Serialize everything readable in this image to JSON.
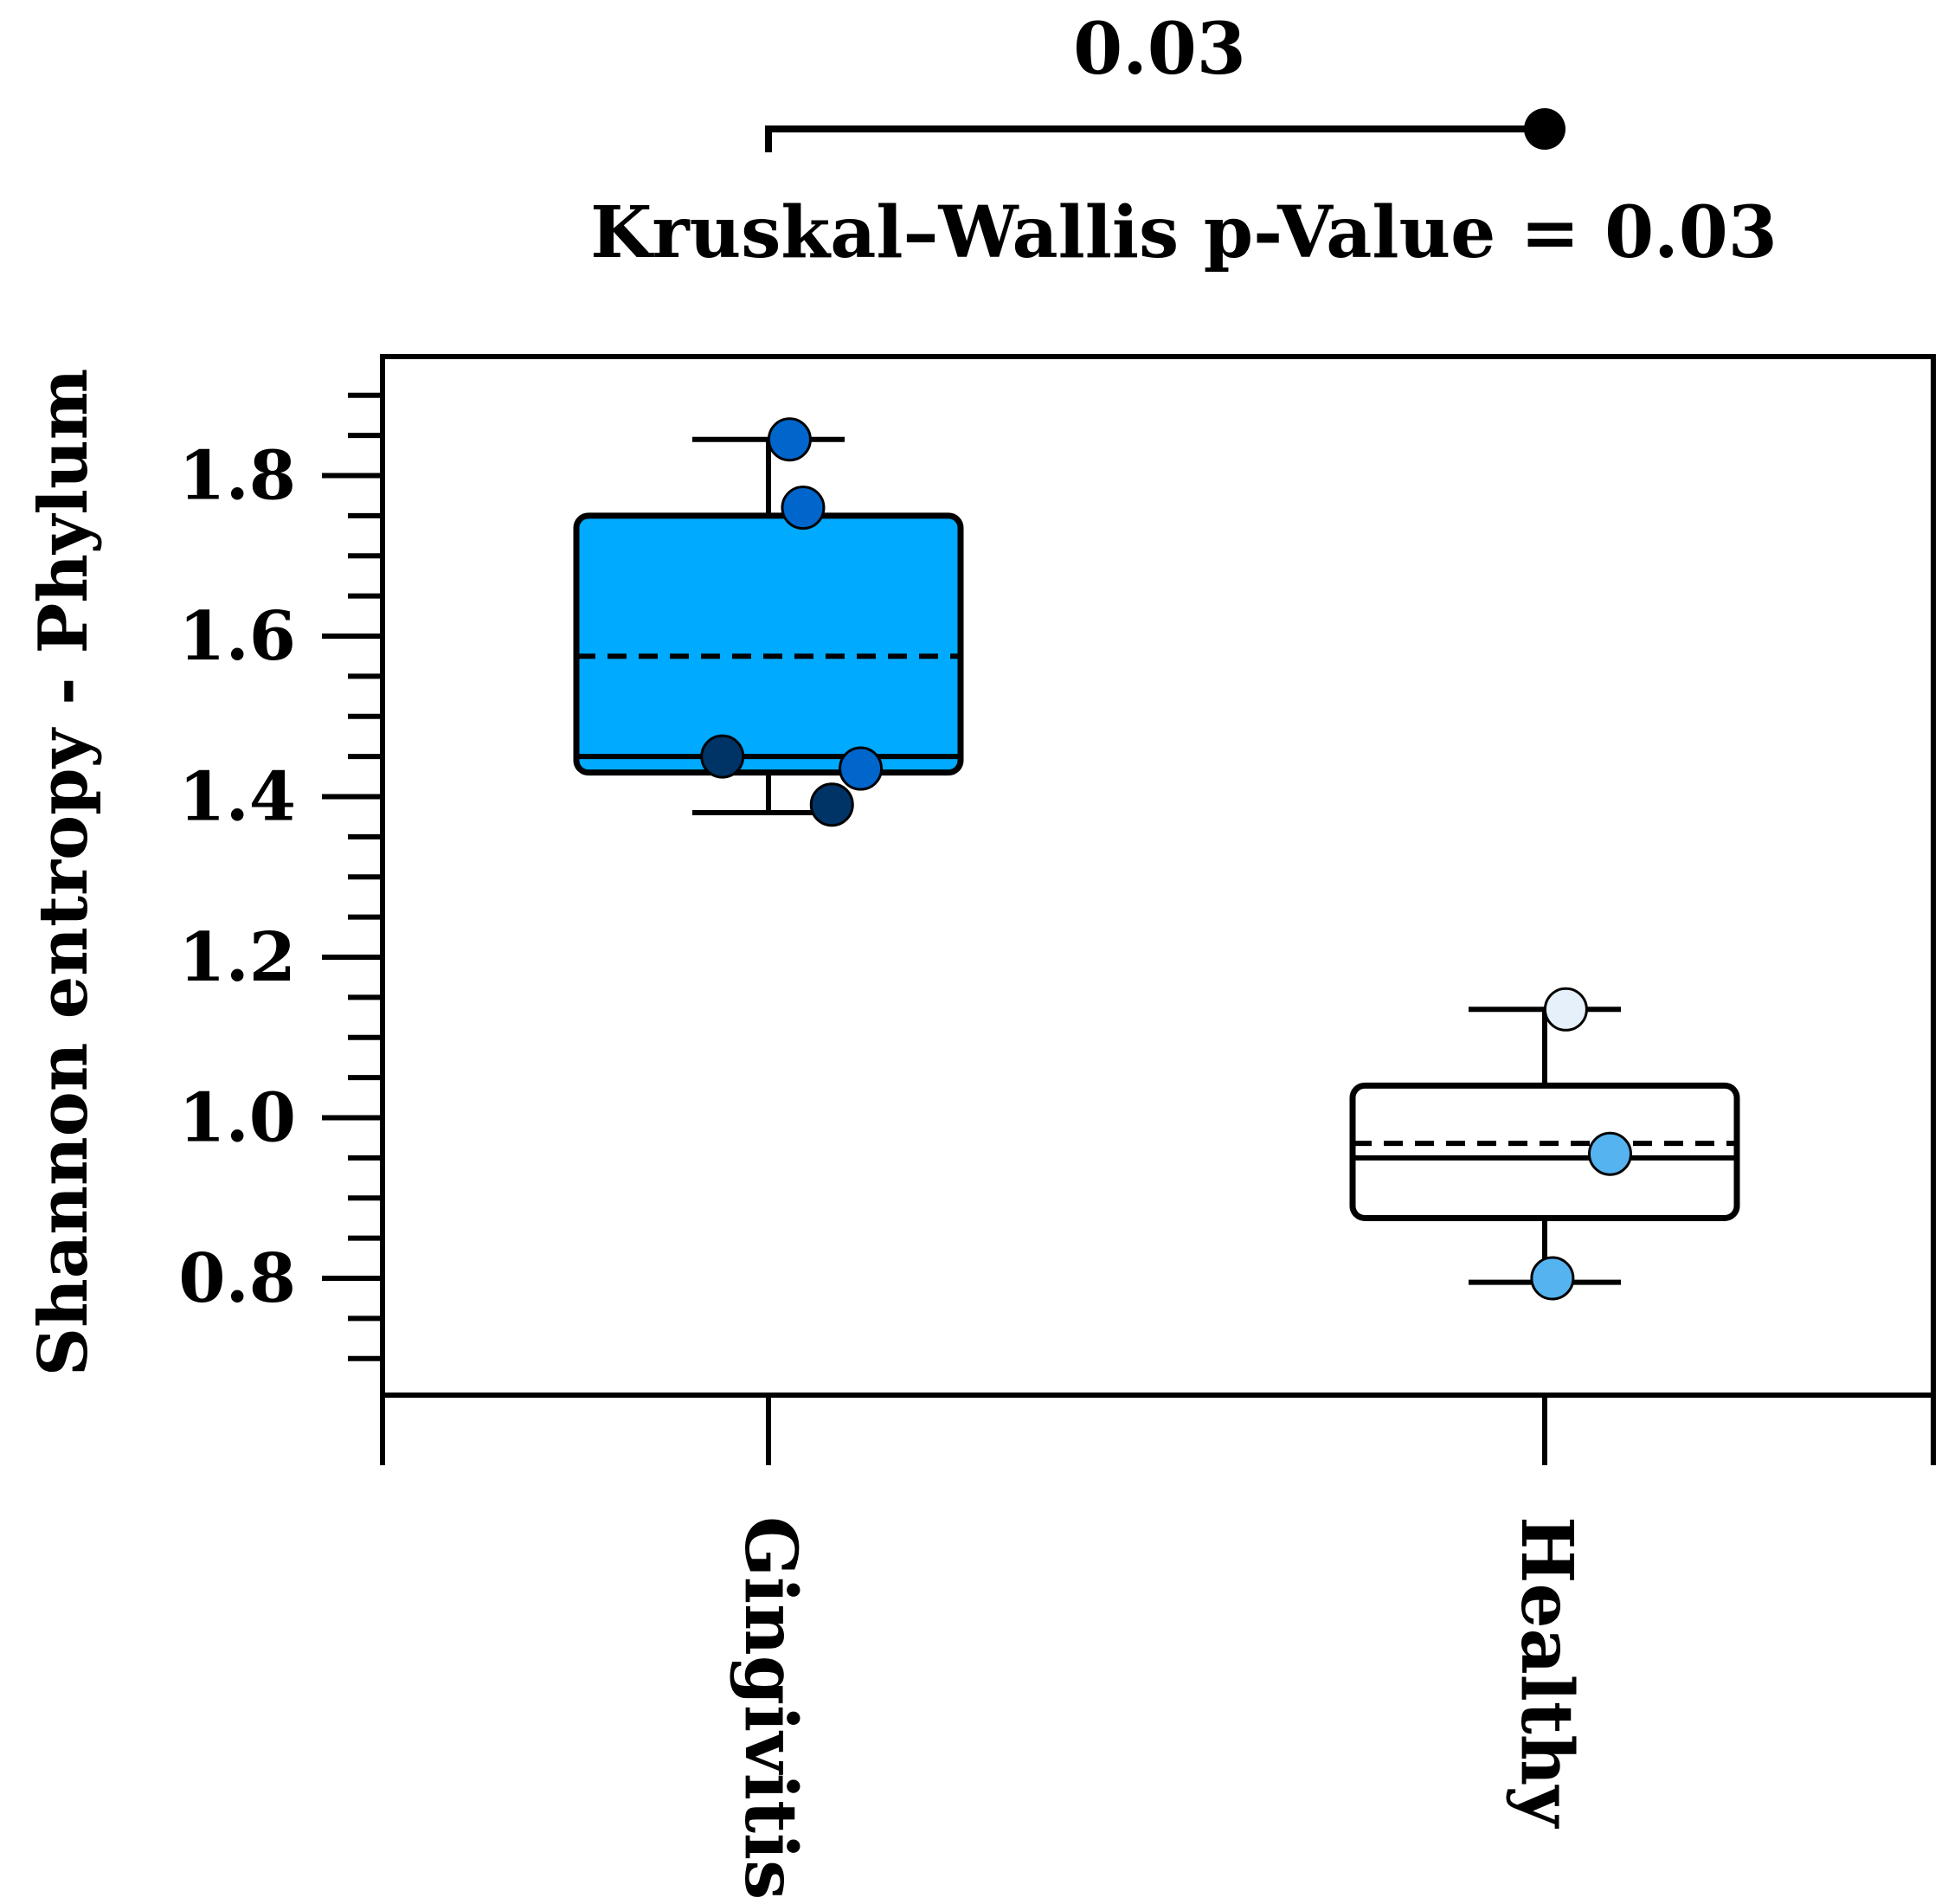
{
  "chart_data": {
    "type": "box",
    "ylabel": "Shannon entropy - Phylum",
    "ylim": [
      0.64,
      1.95
    ],
    "ytick_labels": [
      "0.8",
      "1.0",
      "1.2",
      "1.4",
      "1.6",
      "1.8"
    ],
    "yticks": [
      0.8,
      1.0,
      1.2,
      1.4,
      1.6,
      1.8
    ],
    "categories": [
      "Gingivitis",
      "Healthy"
    ],
    "stat_test": "Kruskal–Wallis p-Value = 0.03",
    "pairwise_label": "0.03",
    "boxes": [
      {
        "category": "Gingivitis",
        "fill": "#00aaff",
        "whisker_low": 1.38,
        "q1": 1.43,
        "median": 1.45,
        "mean": 1.575,
        "q3": 1.75,
        "whisker_high": 1.845,
        "points": [
          {
            "offset": 0.11,
            "value": 1.845,
            "color": "#0066cc"
          },
          {
            "offset": 0.18,
            "value": 1.76,
            "color": "#0066cc"
          },
          {
            "offset": -0.24,
            "value": 1.45,
            "color": "#003366"
          },
          {
            "offset": 0.48,
            "value": 1.435,
            "color": "#0066cc"
          },
          {
            "offset": 0.33,
            "value": 1.39,
            "color": "#003366"
          }
        ]
      },
      {
        "category": "Healthy",
        "fill": "#ffffff",
        "whisker_low": 0.795,
        "q1": 0.875,
        "median": 0.95,
        "mean": 0.968,
        "q3": 1.04,
        "whisker_high": 1.135,
        "points": [
          {
            "offset": 0.11,
            "value": 1.135,
            "color": "#e6f0fa"
          },
          {
            "offset": 0.34,
            "value": 0.955,
            "color": "#55b4f0"
          },
          {
            "offset": 0.04,
            "value": 0.8,
            "color": "#55b4f0"
          }
        ]
      }
    ]
  }
}
